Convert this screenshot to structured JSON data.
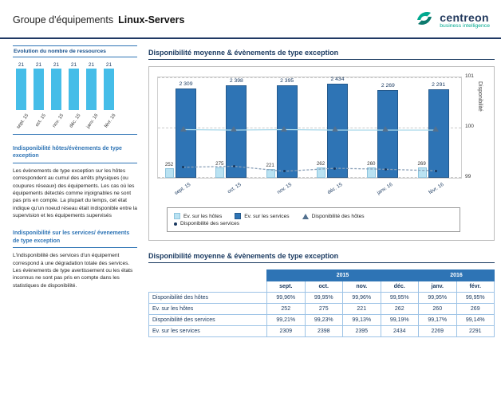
{
  "header": {
    "group_label": "Groupe d'équipements",
    "group_name": "Linux-Servers",
    "logo": {
      "name": "centreon",
      "tagline": "business intelligence"
    }
  },
  "sidebar": {
    "mini_chart_title": "Evolution du nombre de ressources",
    "sections": [
      {
        "title": "Indisponibilité  hôtes/évènements de type exception",
        "body": "Les évènements de type exception sur les hôtes correspondent au cumul des arrêts physiques (ou coupures réseaux) des équipements. Les cas où les équipements détectés comme injoignables ne sont pas pris en compte. La plupart du temps, cet état indique qu'un noeud réseau était indisponible entre la supervision et les équipements supervisés"
      },
      {
        "title": "Indisponibilité sur les services/ évenements de type exception",
        "body": "L'indisponibilité des services d'un équipement correspond à une dégradation totale des services. Les évènements de type avertissement ou les états inconnus ne sont pas pris en compte dans les statistiques de disponibilité."
      }
    ]
  },
  "main": {
    "chart_section_title": "Disponibilité moyenne & évènements de type exception",
    "table_section_title": "Disponibilité moyenne & évènements de type exception"
  },
  "chart_data": [
    {
      "type": "bar",
      "title": "Evolution du nombre de ressources",
      "categories": [
        "sept. 15",
        "oct. 15",
        "nov. 15",
        "déc. 15",
        "janv. 16",
        "févr. 16"
      ],
      "values": [
        21,
        21,
        21,
        21,
        21,
        21
      ],
      "bar_labels": [
        "21",
        "21",
        "21",
        "21",
        "21",
        "21"
      ],
      "ylim": [
        0,
        21
      ]
    },
    {
      "type": "bar",
      "title": "Disponibilité moyenne & évènements de type exception",
      "categories": [
        "sept. 15",
        "oct. 15",
        "nov. 15",
        "déc. 15",
        "janv. 16",
        "févr. 16"
      ],
      "series": [
        {
          "name": "Ev. sur les hôtes",
          "type": "bar",
          "color": "#b9e2f2",
          "values": [
            252,
            275,
            221,
            262,
            260,
            269
          ],
          "labels": [
            "252",
            "275",
            "221",
            "262",
            "260",
            "269"
          ]
        },
        {
          "name": "Ev. sur les services",
          "type": "bar",
          "color": "#2e74b5",
          "values": [
            2309,
            2398,
            2395,
            2434,
            2269,
            2291
          ],
          "labels": [
            "2 309",
            "2 398",
            "2 395",
            "2 434",
            "2 269",
            "2 291"
          ]
        },
        {
          "name": "Disponibilité des hôtes",
          "type": "line",
          "marker": "triangle",
          "color": "#a8d8ea",
          "values": [
            99.96,
            99.95,
            99.96,
            99.95,
            99.95,
            99.95
          ]
        },
        {
          "name": "Disponibilité des services",
          "type": "line",
          "marker": "dot",
          "color": "#8aa0b8",
          "values": [
            99.21,
            99.23,
            99.13,
            99.19,
            99.17,
            99.14
          ]
        }
      ],
      "y2label": "Disponibilité",
      "y2lim": [
        99,
        101
      ],
      "y2ticks": [
        99,
        100,
        101
      ],
      "grid": true,
      "legend_position": "bottom"
    }
  ],
  "table": {
    "year_groups": [
      {
        "label": "2015",
        "span": 4
      },
      {
        "label": "2016",
        "span": 2
      }
    ],
    "months": [
      "sept.",
      "oct.",
      "nov.",
      "déc.",
      "janv.",
      "févr."
    ],
    "rows": [
      {
        "label": "Disponibilité des hôtes",
        "values": [
          "99,96%",
          "99,95%",
          "99,96%",
          "99,95%",
          "99,95%",
          "99,95%"
        ]
      },
      {
        "label": "Ev. sur les hôtes",
        "values": [
          "252",
          "275",
          "221",
          "262",
          "260",
          "269"
        ]
      },
      {
        "label": "Disponibilité des services",
        "values": [
          "99,21%",
          "99,23%",
          "99,13%",
          "99,19%",
          "99,17%",
          "99,14%"
        ]
      },
      {
        "label": "Ev. sur les services",
        "values": [
          "2309",
          "2398",
          "2395",
          "2434",
          "2269",
          "2291"
        ]
      }
    ]
  },
  "colors": {
    "header_rule": "#1f3864",
    "accent_blue": "#2e74b5",
    "dark_navy": "#17375e",
    "host_bar_light": "#b9e2f2",
    "sidebar_bar": "#45bde8",
    "logo_teal": "#00a98f"
  }
}
